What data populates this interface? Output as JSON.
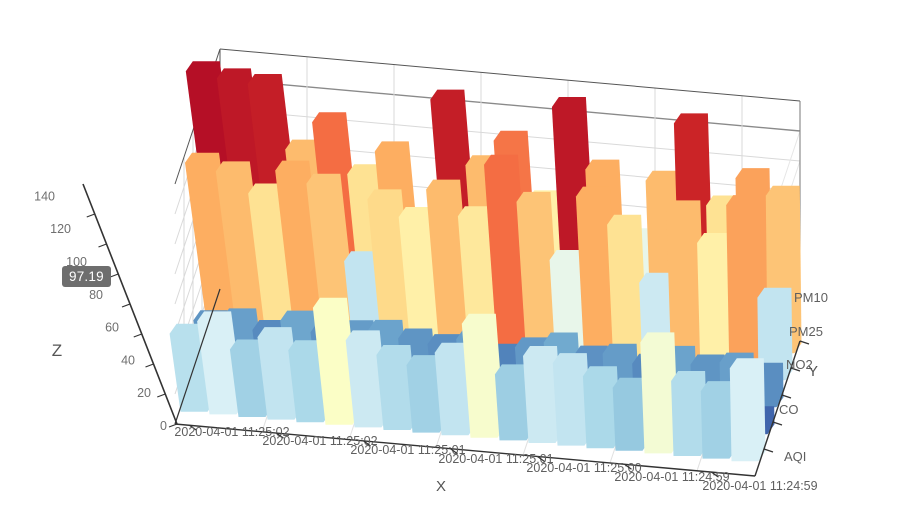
{
  "page": {
    "background": "#ffffff"
  },
  "tooltip": {
    "z_value": "97.19",
    "bg": "#6e6e6e",
    "text_color": "#ffffff"
  },
  "chart_data": {
    "type": "bar",
    "subtype": "bar3D",
    "title": "",
    "axis_names": {
      "x": "X",
      "y": "Y",
      "z": "Z"
    },
    "x_categories": [
      "2020-04-01 11:25:02",
      "2020-04-01 11:25:02",
      "2020-04-01 11:25:02",
      "2020-04-01 11:25:02",
      "2020-04-01 11:25:02",
      "2020-04-01 11:25:02",
      "2020-04-01 11:25:01",
      "2020-04-01 11:25:01",
      "2020-04-01 11:25:01",
      "2020-04-01 11:25:01",
      "2020-04-01 11:25:01",
      "2020-04-01 11:25:01",
      "2020-04-01 11:25:00",
      "2020-04-01 11:25:00",
      "2020-04-01 11:25:00",
      "2020-04-01 11:24:59",
      "2020-04-01 11:24:59",
      "2020-04-01 11:24:59",
      "2020-04-01 11:24:59",
      "2020-04-01 11:24:59"
    ],
    "x_label_interval": 3,
    "y_categories": [
      "AQI",
      "CO",
      "NO2",
      "PM25",
      "PM10"
    ],
    "z_axis": {
      "min": 0,
      "max": 140,
      "interval": 20,
      "tick_labels": [
        "0",
        "20",
        "40",
        "60",
        "80",
        "100",
        "120",
        "140"
      ]
    },
    "visual_map": {
      "min": 0,
      "max": 160,
      "colors": [
        "#313695",
        "#4575b4",
        "#74add1",
        "#abd9e9",
        "#e0f3f8",
        "#ffffbf",
        "#fee090",
        "#fdae61",
        "#f46d43",
        "#d73027",
        "#a50026"
      ]
    },
    "series": [
      {
        "name": "AQI",
        "values": [
          52,
          62,
          45,
          55,
          48,
          78,
          58,
          50,
          45,
          55,
          76,
          44,
          58,
          55,
          48,
          42,
          74,
          50,
          45,
          62
        ]
      },
      {
        "name": "CO",
        "values": [
          10,
          8,
          12,
          7,
          9,
          11,
          6,
          10,
          8,
          26,
          7,
          9,
          13,
          8,
          10,
          7,
          11,
          9,
          8,
          12
        ]
      },
      {
        "name": "NO2",
        "values": [
          25,
          28,
          22,
          30,
          24,
          27,
          29,
          25,
          23,
          28,
          20,
          26,
          31,
          24,
          27,
          22,
          29,
          25,
          28,
          23
        ]
      },
      {
        "name": "PM25",
        "values": [
          112,
          108,
          95,
          112,
          105,
          55,
          98,
          88,
          108,
          92,
          128,
          105,
          68,
          112,
          95,
          58,
          108,
          88,
          115,
          55
        ]
      },
      {
        "name": "PM10",
        "values": [
          155,
          152,
          150,
          108,
          128,
          95,
          112,
          55,
          150,
          108,
          126,
          88,
          152,
          112,
          68,
          108,
          148,
          95,
          115,
          105
        ]
      }
    ],
    "grid_on": true,
    "grid_color": "#d9d9d9",
    "axis_line_color": "#333333",
    "label_color": "#6f6f6f"
  }
}
